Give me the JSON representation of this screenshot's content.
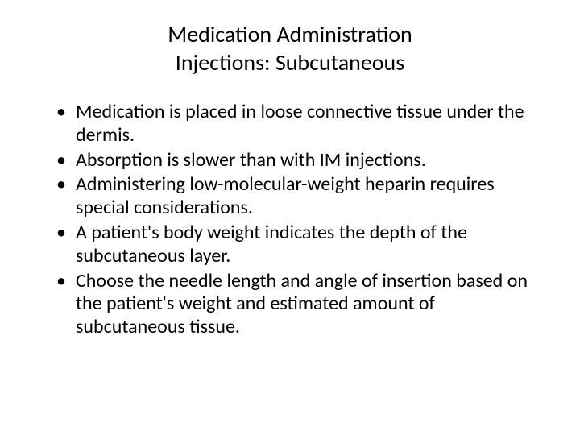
{
  "title": {
    "line1": "Medication Administration",
    "line2": "Injections: Subcutaneous"
  },
  "bullets": [
    "Medication is placed in loose connective tissue under the dermis.",
    "Absorption is slower than with IM injections.",
    "Administering low-molecular-weight heparin requires special considerations.",
    "A patient's body weight indicates the depth of the subcutaneous layer.",
    "Choose the needle length and angle of insertion based on the patient's weight and estimated amount of subcutaneous tissue."
  ],
  "styling": {
    "background_color": "#ffffff",
    "text_color": "#000000",
    "title_fontsize": 28,
    "body_fontsize": 24,
    "font_family": "Calibri"
  }
}
